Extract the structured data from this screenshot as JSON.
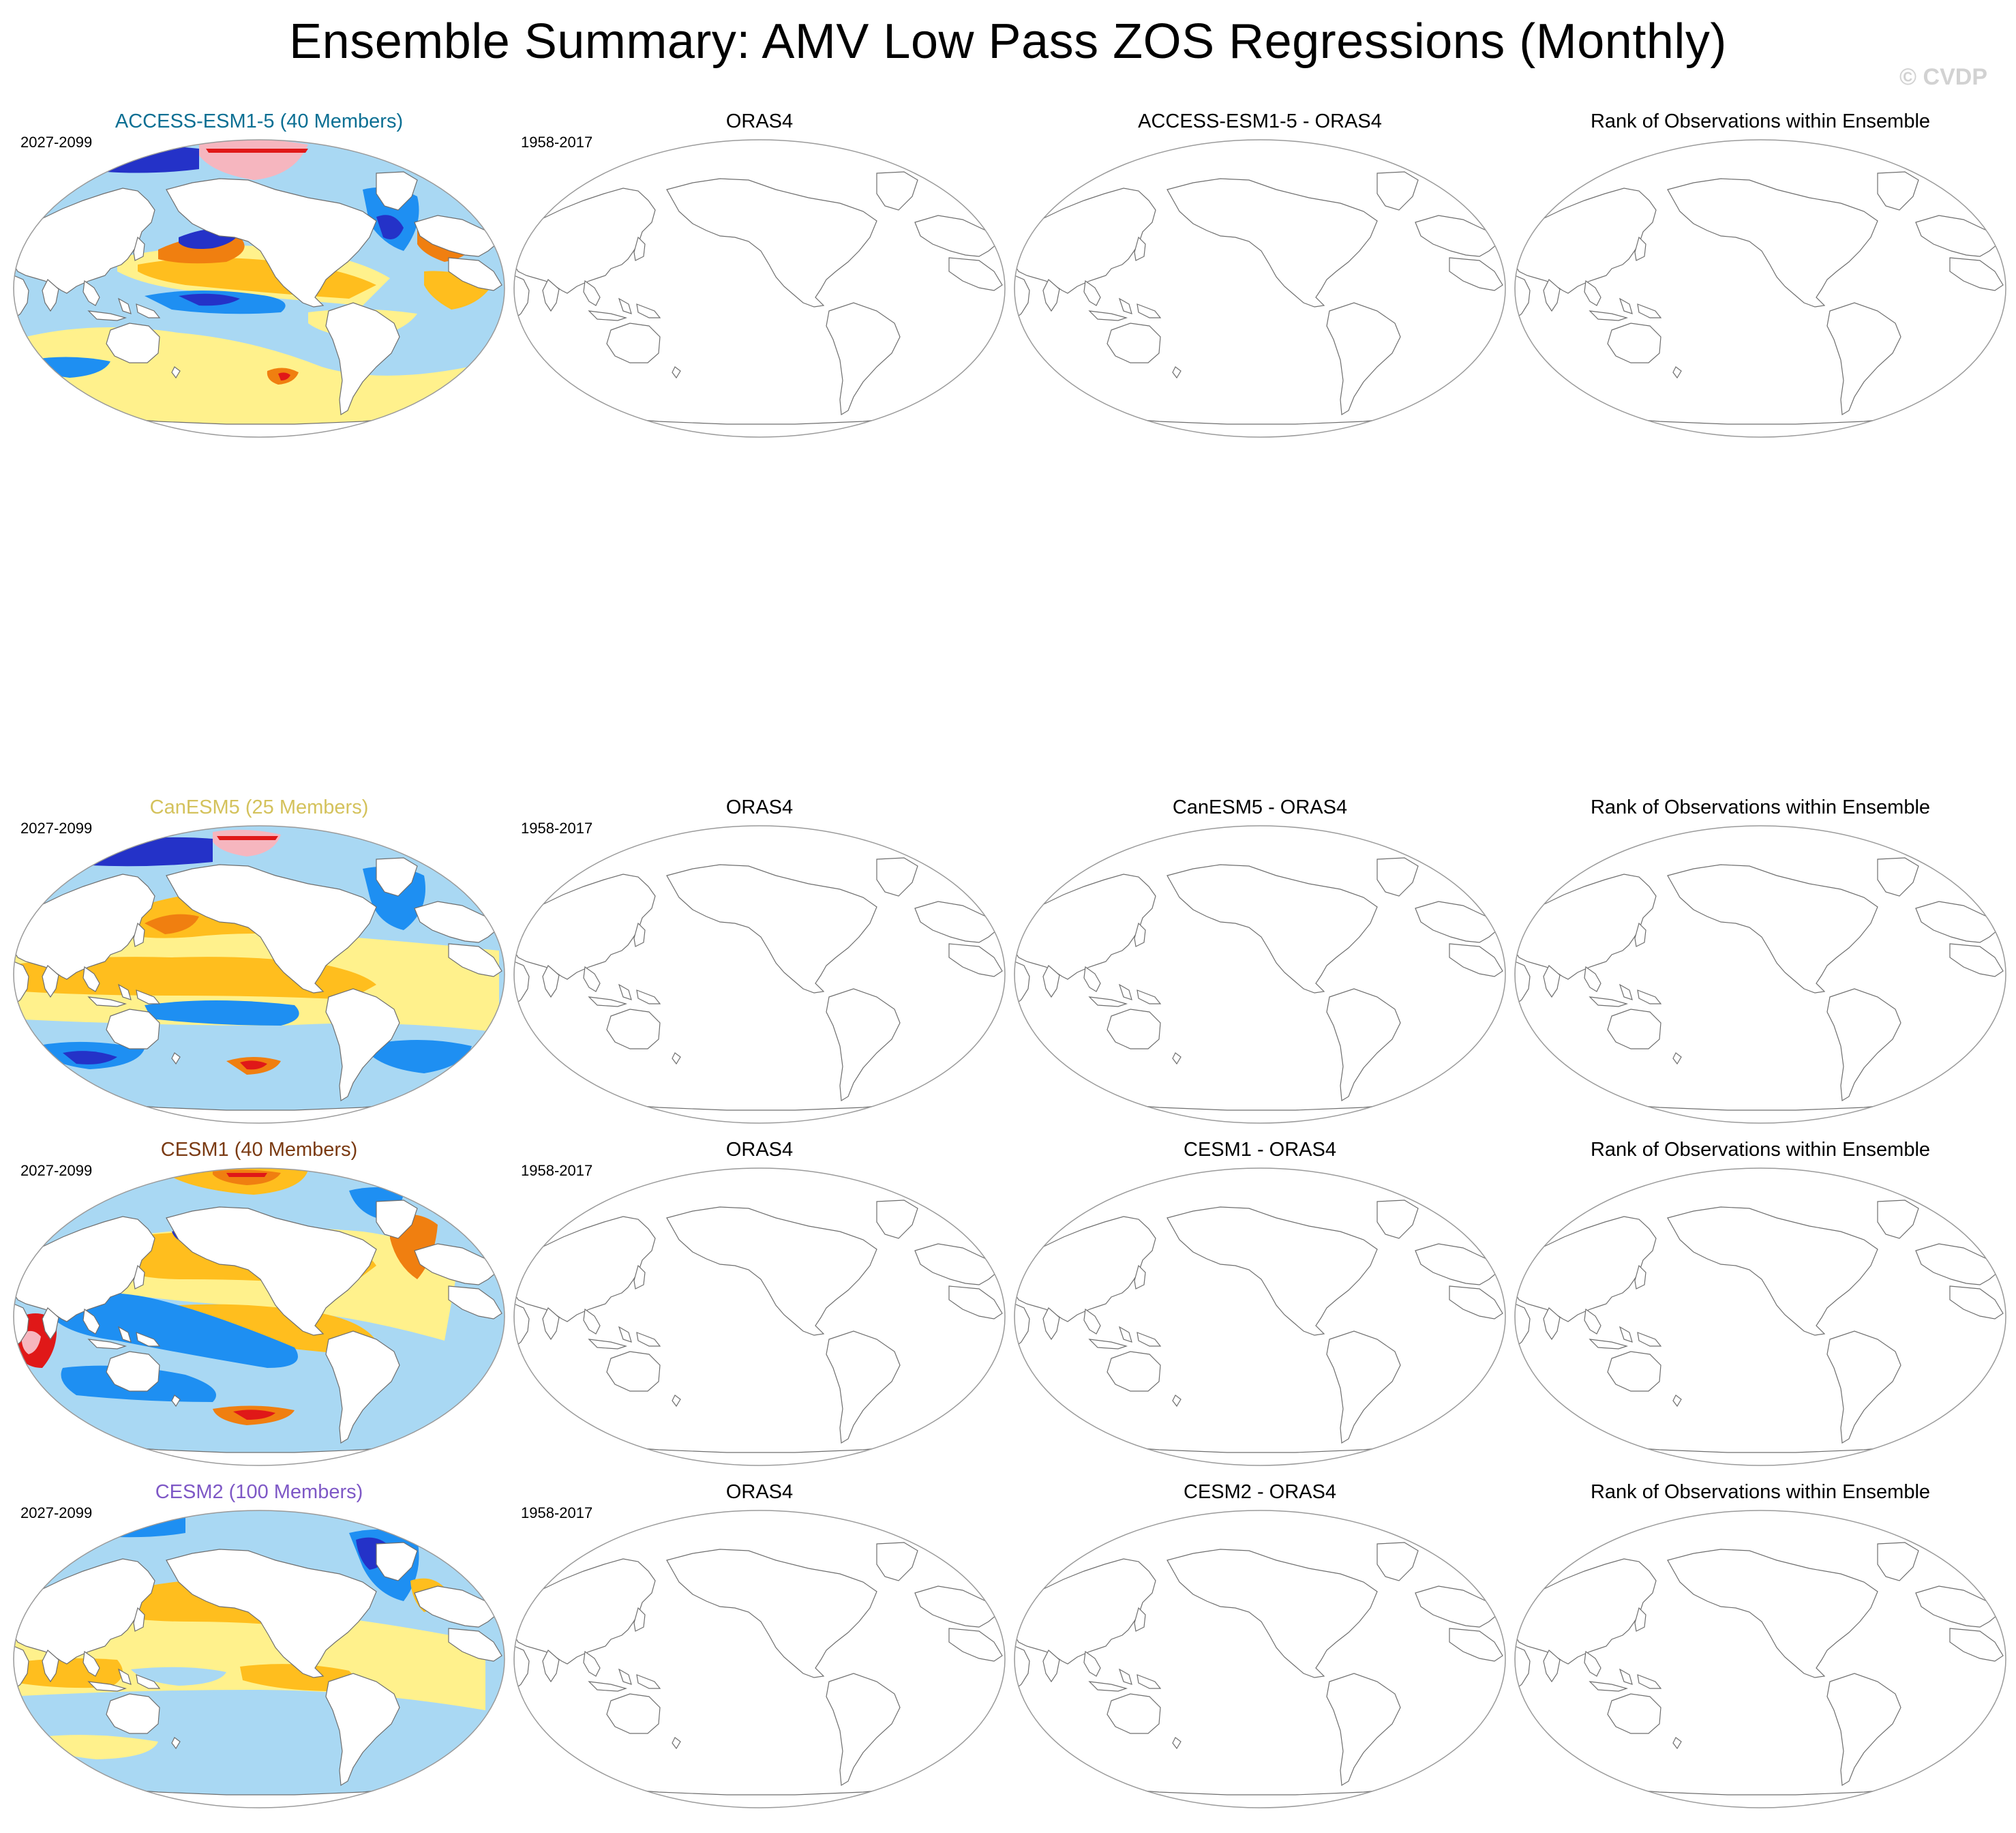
{
  "title": "Ensemble Summary: AMV Low Pass ZOS Regressions (Monthly)",
  "credit": "© CVDP",
  "colors": {
    "title_access": "#0b6f93",
    "title_canesm": "#d4c25c",
    "title_cesm1": "#7a3a12",
    "title_cesm2": "#7e58c6",
    "strong_neg": "#2432c8",
    "neg": "#1e8ff2",
    "weak_neg": "#a9d8f3",
    "weak_pos": "#fff18c",
    "pos": "#ffbe1e",
    "mid_pos": "#f07f10",
    "strong_pos": "#e01818",
    "extreme_pos": "#f6b6bf",
    "coast": "#6e6e6e",
    "outline": "#9a9a9a"
  },
  "rows": [
    {
      "model_title": "ACCESS-ESM1-5 (40 Members)",
      "model_period": "2027-2099",
      "obs_title": "ORAS4",
      "obs_period": "1958-2017",
      "diff_title": "ACCESS-ESM1-5 - ORAS4",
      "rank_title": "Rank of Observations within Ensemble",
      "title_color": "title_access"
    },
    {
      "model_title": "CanESM5 (25 Members)",
      "model_period": "2027-2099",
      "obs_title": "ORAS4",
      "obs_period": "1958-2017",
      "diff_title": "CanESM5 - ORAS4",
      "rank_title": "Rank of Observations within Ensemble",
      "title_color": "title_canesm"
    },
    {
      "model_title": "CESM1 (40 Members)",
      "model_period": "2027-2099",
      "obs_title": "ORAS4",
      "obs_period": "1958-2017",
      "diff_title": "CESM1 - ORAS4",
      "rank_title": "Rank of Observations within Ensemble",
      "title_color": "title_cesm1"
    },
    {
      "model_title": "CESM2 (100 Members)",
      "model_period": "2027-2099",
      "obs_title": "ORAS4",
      "obs_period": "1958-2017",
      "diff_title": "CESM2 - ORAS4",
      "rank_title": "Rank of Observations within Ensemble",
      "title_color": "title_cesm2"
    }
  ]
}
